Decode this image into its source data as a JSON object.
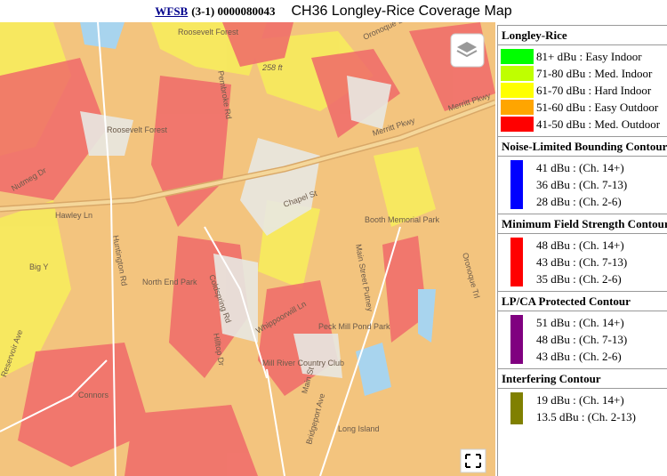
{
  "header": {
    "link": "WFSB",
    "call": "(3-1) 0000080043",
    "title": "CH36 Longley-Rice Coverage Map"
  },
  "map": {
    "labels": [
      "Roosevelt Forest",
      "Roosevelt Forest",
      "258 ft",
      "Oronoque Ln",
      "Merritt Pkwy",
      "Merritt Pkwy",
      "Nutmeg Dr",
      "Hawley Ln",
      "Huntington Rd",
      "Chapel St",
      "Booth Memorial Park",
      "Coldspring Rd",
      "Big Y",
      "North End Park",
      "Whippoorwill Ln",
      "Peck Mill Pond Park",
      "Mill River Country Club",
      "Hilltop Dr",
      "Main St",
      "Connors",
      "Long Island",
      "Bridgeport Ave",
      "Pembroke Rd",
      "Reservoir Ave",
      "Main Street Putney",
      "Oronoque Trl"
    ]
  },
  "legend": {
    "sections": [
      {
        "title": "Longley-Rice",
        "items": [
          {
            "label": "81+ dBu : Easy Indoor",
            "color": "#00ff00"
          },
          {
            "label": "71-80 dBu : Med. Indoor",
            "color": "#bfff00"
          },
          {
            "label": "61-70 dBu : Hard Indoor",
            "color": "#ffff00"
          },
          {
            "label": "51-60 dBu : Easy Outdoor",
            "color": "#ffa500"
          },
          {
            "label": "41-50 dBu : Med. Outdoor",
            "color": "#ff0000"
          }
        ]
      },
      {
        "title": "Noise-Limited Bounding Contour",
        "color": "#0000ff",
        "items": [
          "41 dBu : (Ch. 14+)",
          "36 dBu : (Ch. 7-13)",
          "28 dBu : (Ch. 2-6)"
        ]
      },
      {
        "title": "Minimum Field Strength Contour",
        "color": "#ff0000",
        "items": [
          "48 dBu : (Ch. 14+)",
          "43 dBu : (Ch. 7-13)",
          "35 dBu : (Ch. 2-6)"
        ]
      },
      {
        "title": "LP/CA Protected Contour",
        "color": "#800080",
        "items": [
          "51 dBu : (Ch. 14+)",
          "48 dBu : (Ch. 7-13)",
          "43 dBu : (Ch. 2-6)"
        ]
      },
      {
        "title": "Interfering Contour",
        "color": "#808000",
        "items": [
          "19 dBu : (Ch. 14+)",
          "13.5 dBu : (Ch. 2-13)"
        ]
      }
    ]
  }
}
